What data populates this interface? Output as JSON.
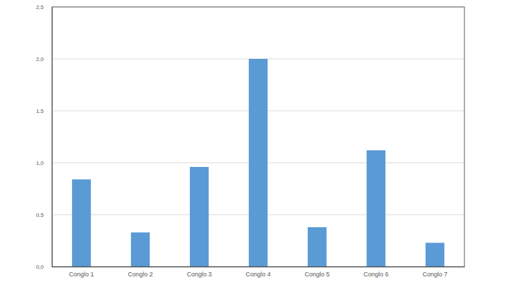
{
  "chart_data": {
    "type": "bar",
    "categories": [
      "Conglo 1",
      "Conglo 2",
      "Conglo 3",
      "Conglo 4",
      "Conglo 5",
      "Conglo 6",
      "Conglo 7"
    ],
    "values": [
      0.84,
      0.33,
      0.96,
      2.0,
      0.38,
      1.12,
      0.23
    ],
    "color": "#5b9bd5",
    "ylim": [
      0,
      2.5
    ],
    "yticks": [
      {
        "value": 0,
        "label": "0,0"
      },
      {
        "value": 0.5,
        "label": "0,5"
      },
      {
        "value": 1,
        "label": "1,0"
      },
      {
        "value": 1.5,
        "label": "1,5"
      },
      {
        "value": 2,
        "label": "2,0"
      },
      {
        "value": 2.5,
        "label": "2,5"
      }
    ],
    "grid": true
  }
}
